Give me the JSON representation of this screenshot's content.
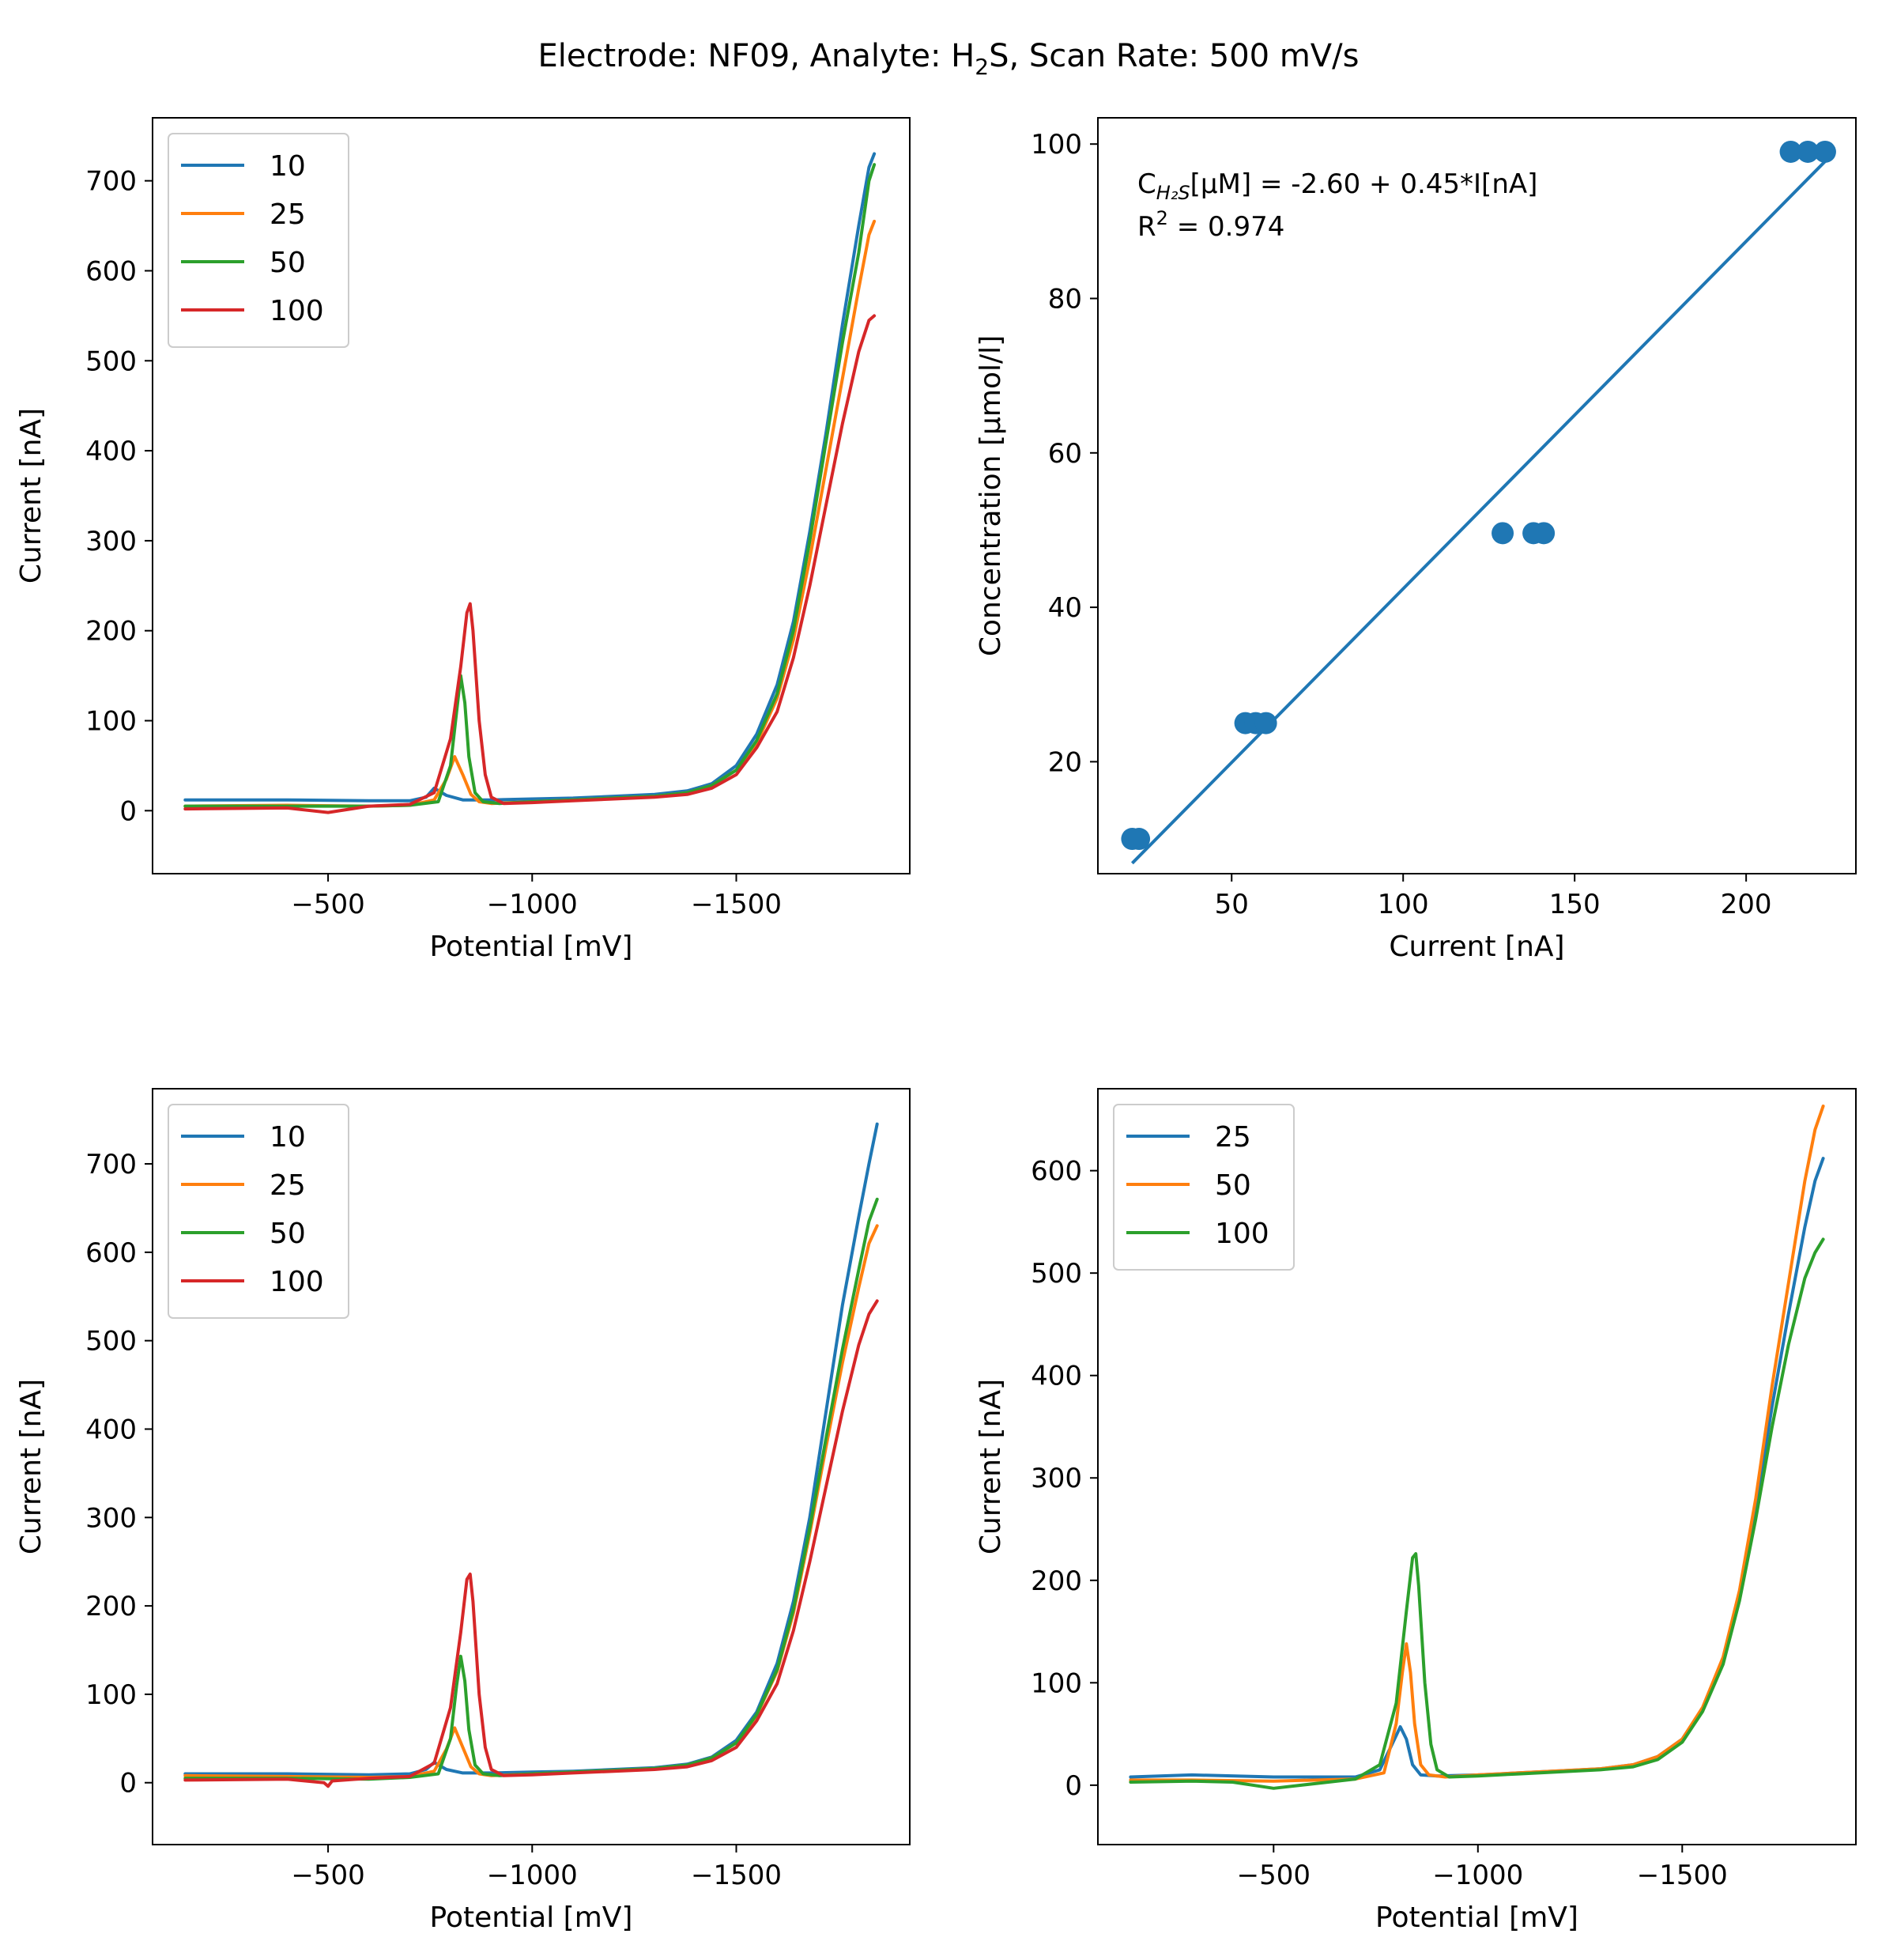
{
  "figure": {
    "title_parts": [
      "Electrode: NF09, Analyte: H",
      "2",
      "S, Scan Rate: 500 mV/s"
    ]
  },
  "colors": {
    "C0": "#1f77b4",
    "C1": "#ff7f0e",
    "C2": "#2ca02c",
    "C3": "#d62728",
    "axes": "#000000",
    "legend_frame": "#cccccc"
  },
  "chart_data": [
    {
      "id": "top-left",
      "type": "line",
      "xlabel": "Potential [mV]",
      "ylabel": "Current [nA]",
      "x_inverted": true,
      "xlim": [
        -70,
        -1925
      ],
      "ylim": [
        -70,
        770
      ],
      "xticks": [
        -500,
        -1000,
        -1500
      ],
      "xtick_labels": [
        "−500",
        "−1000",
        "−1500"
      ],
      "yticks": [
        0,
        100,
        200,
        300,
        400,
        500,
        600,
        700
      ],
      "ytick_labels": [
        "0",
        "100",
        "200",
        "300",
        "400",
        "500",
        "600",
        "700"
      ],
      "legend_position": "upper left",
      "series": [
        {
          "name": "10",
          "color": "C0",
          "x": [
            -150,
            -400,
            -600,
            -700,
            -740,
            -760,
            -790,
            -830,
            -900,
            -1000,
            -1100,
            -1200,
            -1300,
            -1380,
            -1440,
            -1500,
            -1550,
            -1600,
            -1640,
            -1680,
            -1720,
            -1760,
            -1800,
            -1825,
            -1838
          ],
          "y": [
            12,
            12,
            11,
            11,
            15,
            25,
            17,
            12,
            12,
            13,
            14,
            16,
            18,
            22,
            30,
            50,
            85,
            140,
            210,
            310,
            420,
            540,
            650,
            715,
            730
          ]
        },
        {
          "name": "25",
          "color": "C1",
          "x": [
            -150,
            -400,
            -600,
            -700,
            -760,
            -790,
            -810,
            -830,
            -850,
            -870,
            -900,
            -1000,
            -1100,
            -1200,
            -1300,
            -1380,
            -1440,
            -1500,
            -1550,
            -1600,
            -1640,
            -1680,
            -1720,
            -1760,
            -1800,
            -1825,
            -1838
          ],
          "y": [
            5,
            6,
            5,
            6,
            12,
            35,
            60,
            40,
            18,
            10,
            8,
            10,
            12,
            14,
            16,
            20,
            28,
            45,
            75,
            125,
            190,
            280,
            380,
            480,
            580,
            640,
            655
          ]
        },
        {
          "name": "50",
          "color": "C2",
          "x": [
            -150,
            -400,
            -600,
            -700,
            -770,
            -800,
            -815,
            -825,
            -835,
            -845,
            -860,
            -880,
            -920,
            -1000,
            -1100,
            -1200,
            -1300,
            -1380,
            -1440,
            -1500,
            -1550,
            -1600,
            -1640,
            -1680,
            -1720,
            -1760,
            -1800,
            -1825,
            -1838
          ],
          "y": [
            5,
            5,
            5,
            6,
            10,
            50,
            110,
            150,
            120,
            60,
            20,
            10,
            8,
            10,
            12,
            14,
            16,
            20,
            28,
            45,
            78,
            130,
            200,
            300,
            410,
            520,
            620,
            700,
            718
          ]
        },
        {
          "name": "100",
          "color": "C3",
          "x": [
            -150,
            -400,
            -500,
            -600,
            -700,
            -760,
            -800,
            -825,
            -840,
            -848,
            -855,
            -870,
            -885,
            -900,
            -930,
            -1000,
            -1100,
            -1200,
            -1300,
            -1380,
            -1440,
            -1500,
            -1550,
            -1600,
            -1640,
            -1680,
            -1720,
            -1760,
            -1800,
            -1825,
            -1838
          ],
          "y": [
            2,
            3,
            -2,
            5,
            7,
            20,
            80,
            160,
            220,
            230,
            200,
            100,
            40,
            15,
            8,
            9,
            11,
            13,
            15,
            18,
            25,
            40,
            70,
            110,
            170,
            250,
            340,
            430,
            510,
            545,
            550
          ]
        }
      ]
    },
    {
      "id": "top-right",
      "type": "scatter",
      "xlabel": "Current [nA]",
      "ylabel": "Concentration [µmol/l]",
      "x_inverted": false,
      "xlim": [
        11,
        232
      ],
      "ylim": [
        5.5,
        103.4
      ],
      "xticks": [
        50,
        100,
        150,
        200
      ],
      "xtick_labels": [
        "50",
        "100",
        "150",
        "200"
      ],
      "yticks": [
        20,
        40,
        60,
        80,
        100
      ],
      "ytick_labels": [
        "20",
        "40",
        "60",
        "80",
        "100"
      ],
      "points": {
        "color": "C0",
        "x": [
          21,
          23,
          54,
          57,
          60,
          129,
          138,
          141,
          213,
          218,
          223
        ],
        "y": [
          10,
          10,
          25,
          25,
          25,
          49.6,
          49.6,
          49.6,
          99,
          99,
          99
        ]
      },
      "fit": {
        "color": "C0",
        "x": [
          21,
          223
        ],
        "y": [
          6.85,
          97.75
        ]
      },
      "annotation": {
        "line1_prefix": "C",
        "line1_subscript": "H₂S",
        "line1_suffix": "[µM] = -2.60 + 0.45*I[nA]",
        "line2_prefix": "R",
        "line2_superscript": "2",
        "line2_suffix": " = 0.974"
      }
    },
    {
      "id": "bottom-left",
      "type": "line",
      "xlabel": "Potential [mV]",
      "ylabel": "Current [nA]",
      "x_inverted": true,
      "xlim": [
        -70,
        -1925
      ],
      "ylim": [
        -70,
        785
      ],
      "xticks": [
        -500,
        -1000,
        -1500
      ],
      "xtick_labels": [
        "−500",
        "−1000",
        "−1500"
      ],
      "yticks": [
        0,
        100,
        200,
        300,
        400,
        500,
        600,
        700
      ],
      "ytick_labels": [
        "0",
        "100",
        "200",
        "300",
        "400",
        "500",
        "600",
        "700"
      ],
      "legend_position": "upper left",
      "series": [
        {
          "name": "10",
          "color": "C0",
          "x": [
            -150,
            -400,
            -600,
            -700,
            -740,
            -760,
            -790,
            -830,
            -900,
            -1000,
            -1100,
            -1200,
            -1300,
            -1380,
            -1440,
            -1500,
            -1550,
            -1600,
            -1640,
            -1680,
            -1720,
            -1760,
            -1800,
            -1825,
            -1845
          ],
          "y": [
            10,
            10,
            9,
            10,
            15,
            23,
            15,
            11,
            11,
            12,
            13,
            15,
            17,
            21,
            29,
            48,
            80,
            135,
            205,
            300,
            420,
            540,
            640,
            700,
            745
          ]
        },
        {
          "name": "25",
          "color": "C1",
          "x": [
            -150,
            -400,
            -600,
            -700,
            -760,
            -790,
            -810,
            -830,
            -850,
            -870,
            -900,
            -1000,
            -1100,
            -1200,
            -1300,
            -1380,
            -1440,
            -1500,
            -1550,
            -1600,
            -1640,
            -1680,
            -1720,
            -1760,
            -1800,
            -1825,
            -1845
          ],
          "y": [
            8,
            7,
            6,
            7,
            13,
            38,
            62,
            40,
            18,
            10,
            8,
            10,
            12,
            14,
            16,
            20,
            28,
            45,
            76,
            126,
            192,
            282,
            380,
            475,
            560,
            610,
            630
          ]
        },
        {
          "name": "50",
          "color": "C2",
          "x": [
            -150,
            -400,
            -600,
            -700,
            -770,
            -800,
            -815,
            -825,
            -835,
            -845,
            -860,
            -880,
            -920,
            -1000,
            -1100,
            -1200,
            -1300,
            -1380,
            -1440,
            -1500,
            -1550,
            -1600,
            -1640,
            -1680,
            -1720,
            -1760,
            -1800,
            -1825,
            -1845
          ],
          "y": [
            5,
            5,
            4,
            6,
            10,
            50,
            110,
            143,
            115,
            60,
            20,
            10,
            8,
            10,
            12,
            14,
            16,
            20,
            28,
            45,
            77,
            128,
            196,
            288,
            390,
            490,
            580,
            635,
            660
          ]
        },
        {
          "name": "100",
          "color": "C3",
          "x": [
            -150,
            -400,
            -490,
            -500,
            -510,
            -600,
            -700,
            -760,
            -800,
            -825,
            -840,
            -848,
            -855,
            -870,
            -885,
            -900,
            -930,
            -1000,
            -1100,
            -1200,
            -1300,
            -1380,
            -1440,
            -1500,
            -1550,
            -1600,
            -1640,
            -1680,
            -1720,
            -1760,
            -1800,
            -1825,
            -1845
          ],
          "y": [
            3,
            4,
            0,
            -4,
            2,
            5,
            7,
            22,
            85,
            170,
            230,
            236,
            205,
            100,
            40,
            15,
            8,
            9,
            11,
            13,
            15,
            18,
            25,
            40,
            70,
            112,
            172,
            250,
            335,
            420,
            495,
            530,
            545
          ]
        }
      ]
    },
    {
      "id": "bottom-right",
      "type": "line",
      "xlabel": "Potential [mV]",
      "ylabel": "Current [nA]",
      "x_inverted": true,
      "xlim": [
        -70,
        -1925
      ],
      "ylim": [
        -58,
        680
      ],
      "xticks": [
        -500,
        -1000,
        -1500
      ],
      "xtick_labels": [
        "−500",
        "−1000",
        "−1500"
      ],
      "yticks": [
        0,
        100,
        200,
        300,
        400,
        500,
        600
      ],
      "ytick_labels": [
        "0",
        "100",
        "200",
        "300",
        "400",
        "500",
        "600"
      ],
      "legend_position": "upper left",
      "series": [
        {
          "name": "25",
          "color": "C0",
          "x": [
            -150,
            -300,
            -500,
            -700,
            -760,
            -790,
            -810,
            -825,
            -840,
            -860,
            -900,
            -1000,
            -1100,
            -1200,
            -1300,
            -1380,
            -1440,
            -1500,
            -1550,
            -1600,
            -1640,
            -1680,
            -1720,
            -1760,
            -1800,
            -1825,
            -1845
          ],
          "y": [
            8,
            10,
            8,
            8,
            15,
            40,
            57,
            45,
            20,
            10,
            9,
            10,
            12,
            14,
            16,
            20,
            28,
            45,
            75,
            120,
            185,
            270,
            370,
            460,
            545,
            590,
            612
          ]
        },
        {
          "name": "50",
          "color": "C1",
          "x": [
            -150,
            -300,
            -500,
            -700,
            -770,
            -800,
            -815,
            -825,
            -835,
            -845,
            -860,
            -880,
            -920,
            -1000,
            -1100,
            -1200,
            -1300,
            -1380,
            -1440,
            -1500,
            -1550,
            -1600,
            -1640,
            -1680,
            -1720,
            -1760,
            -1800,
            -1825,
            -1845
          ],
          "y": [
            5,
            5,
            4,
            6,
            12,
            60,
            110,
            138,
            110,
            60,
            20,
            10,
            8,
            10,
            12,
            14,
            16,
            20,
            28,
            45,
            76,
            125,
            190,
            280,
            390,
            490,
            590,
            640,
            663
          ]
        },
        {
          "name": "100",
          "color": "C2",
          "x": [
            -150,
            -300,
            -400,
            -500,
            -700,
            -760,
            -800,
            -825,
            -840,
            -848,
            -855,
            -870,
            -885,
            -900,
            -930,
            -1000,
            -1100,
            -1200,
            -1300,
            -1380,
            -1440,
            -1500,
            -1550,
            -1600,
            -1640,
            -1680,
            -1720,
            -1760,
            -1800,
            -1825,
            -1845
          ],
          "y": [
            3,
            4,
            3,
            -3,
            6,
            20,
            80,
            170,
            222,
            226,
            195,
            100,
            40,
            15,
            8,
            9,
            11,
            13,
            15,
            18,
            25,
            42,
            72,
            118,
            180,
            260,
            350,
            430,
            495,
            520,
            533
          ]
        }
      ]
    }
  ]
}
